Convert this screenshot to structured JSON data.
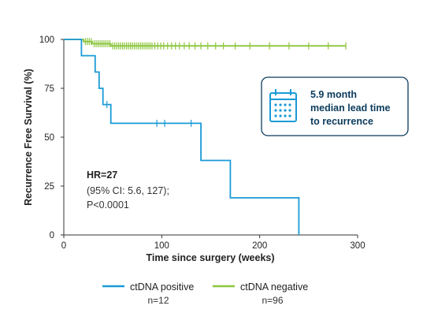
{
  "chart_data": {
    "type": "line",
    "subtype": "kaplan-meier",
    "xlabel": "Time since surgery (weeks)",
    "ylabel": "Recurrence Free Survival (%)",
    "xlim": [
      0,
      300
    ],
    "ylim": [
      0,
      100
    ],
    "xticks": [
      0,
      100,
      200,
      300
    ],
    "yticks": [
      0,
      25,
      50,
      75,
      100
    ],
    "grid": false,
    "legend_position": "bottom",
    "series": [
      {
        "name": "ctDNA positive",
        "n_label": "n=12",
        "color": "#1a9bd7",
        "steps": [
          [
            0,
            100
          ],
          [
            18,
            100
          ],
          [
            18,
            91.7
          ],
          [
            32,
            91.7
          ],
          [
            32,
            83.3
          ],
          [
            36,
            83.3
          ],
          [
            36,
            75
          ],
          [
            40,
            75
          ],
          [
            40,
            66.7
          ],
          [
            48,
            66.7
          ],
          [
            48,
            57.1
          ],
          [
            140,
            57.1
          ],
          [
            140,
            38.1
          ],
          [
            170,
            38.1
          ],
          [
            170,
            19
          ],
          [
            240,
            19
          ],
          [
            240,
            0
          ]
        ],
        "censors": [
          [
            44,
            66.7
          ],
          [
            95,
            57.1
          ],
          [
            103,
            57.1
          ],
          [
            130,
            57.1
          ]
        ]
      },
      {
        "name": "ctDNA negative",
        "n_label": "n=96",
        "color": "#8dc63f",
        "steps": [
          [
            0,
            100
          ],
          [
            20,
            100
          ],
          [
            20,
            98.9
          ],
          [
            29,
            98.9
          ],
          [
            29,
            97.8
          ],
          [
            48,
            97.8
          ],
          [
            48,
            96.7
          ],
          [
            288,
            96.7
          ]
        ],
        "censors": [
          [
            22,
            98.9
          ],
          [
            24,
            98.9
          ],
          [
            26,
            98.9
          ],
          [
            28,
            98.9
          ],
          [
            31,
            97.8
          ],
          [
            33,
            97.8
          ],
          [
            35,
            97.8
          ],
          [
            37,
            97.8
          ],
          [
            39,
            97.8
          ],
          [
            41,
            97.8
          ],
          [
            43,
            97.8
          ],
          [
            45,
            97.8
          ],
          [
            47,
            97.8
          ],
          [
            50,
            96.7
          ],
          [
            52,
            96.7
          ],
          [
            54,
            96.7
          ],
          [
            56,
            96.7
          ],
          [
            58,
            96.7
          ],
          [
            60,
            96.7
          ],
          [
            62,
            96.7
          ],
          [
            64,
            96.7
          ],
          [
            66,
            96.7
          ],
          [
            68,
            96.7
          ],
          [
            70,
            96.7
          ],
          [
            72,
            96.7
          ],
          [
            74,
            96.7
          ],
          [
            76,
            96.7
          ],
          [
            78,
            96.7
          ],
          [
            80,
            96.7
          ],
          [
            82,
            96.7
          ],
          [
            84,
            96.7
          ],
          [
            86,
            96.7
          ],
          [
            88,
            96.7
          ],
          [
            90,
            96.7
          ],
          [
            93,
            96.7
          ],
          [
            96,
            96.7
          ],
          [
            99,
            96.7
          ],
          [
            102,
            96.7
          ],
          [
            106,
            96.7
          ],
          [
            110,
            96.7
          ],
          [
            114,
            96.7
          ],
          [
            118,
            96.7
          ],
          [
            123,
            96.7
          ],
          [
            128,
            96.7
          ],
          [
            134,
            96.7
          ],
          [
            140,
            96.7
          ],
          [
            147,
            96.7
          ],
          [
            155,
            96.7
          ],
          [
            163,
            96.7
          ],
          [
            175,
            96.7
          ],
          [
            190,
            96.7
          ],
          [
            210,
            96.7
          ],
          [
            230,
            96.7
          ],
          [
            250,
            96.7
          ],
          [
            270,
            96.7
          ],
          [
            288,
            96.7
          ]
        ]
      }
    ],
    "annotations": {
      "hr_title": "HR=27",
      "hr_line1": "(95% CI: 5.6, 127);",
      "hr_line2": "P<0.0001",
      "callout_line1": "5.9 month",
      "callout_line2": "median lead time",
      "callout_line3": "to recurrence",
      "callout_icon": "calendar-icon"
    }
  }
}
